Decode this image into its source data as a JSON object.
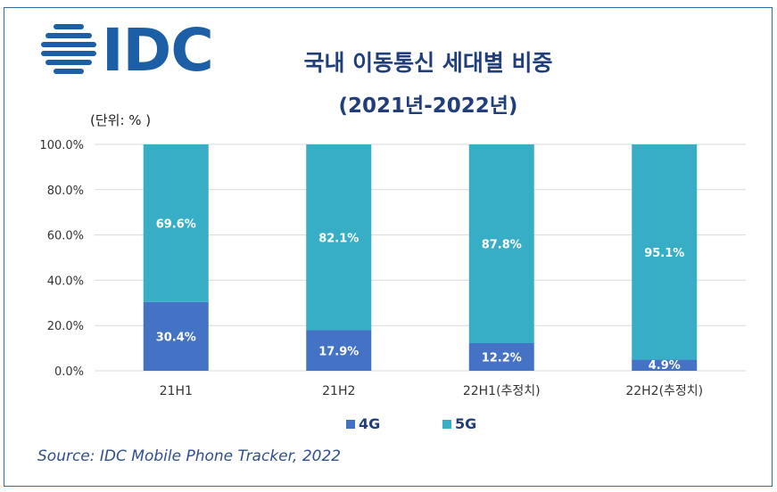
{
  "logo": {
    "text": "IDC",
    "color": "#1c5fa6"
  },
  "header": {
    "title": "국내 이동통신 세대별 비중",
    "subtitle": "(2021년-2022년)",
    "unit": "(단위: % )"
  },
  "source": "Source: IDC Mobile Phone Tracker, 2022",
  "colors": {
    "4G": "#4472c4",
    "5G": "#38aec6",
    "grid": "#d9d9d9"
  },
  "chart_data": {
    "type": "bar",
    "stacked": true,
    "categories": [
      "21H1",
      "21H2",
      "22H1(추정치)",
      "22H2(추정치)"
    ],
    "series": [
      {
        "name": "4G",
        "values": [
          30.4,
          17.9,
          12.2,
          4.9
        ],
        "labels": [
          "30.4%",
          "17.9%",
          "12.2%",
          "4.9%"
        ]
      },
      {
        "name": "5G",
        "values": [
          69.6,
          82.1,
          87.8,
          95.1
        ],
        "labels": [
          "69.6%",
          "82.1%",
          "87.8%",
          "95.1%"
        ]
      }
    ],
    "ylim": [
      0,
      100
    ],
    "yticks": [
      "0.0%",
      "20.0%",
      "40.0%",
      "60.0%",
      "80.0%",
      "100.0%"
    ],
    "ytick_values": [
      0,
      20,
      40,
      60,
      80,
      100
    ],
    "grid": true,
    "legend": "bottom-center",
    "title": "",
    "xlabel": "",
    "ylabel": ""
  }
}
